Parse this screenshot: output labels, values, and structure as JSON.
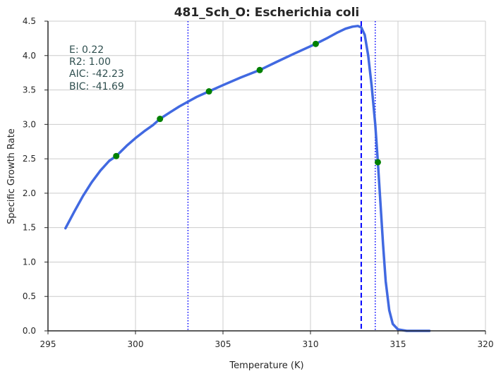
{
  "chart_data": {
    "type": "line",
    "title": "481_Sch_O: Escherichia coli",
    "xlabel": "Temperature (K)",
    "ylabel": "Specific Growth Rate",
    "xlim": [
      295,
      320
    ],
    "ylim": [
      0,
      4.5
    ],
    "xticks": [
      295,
      300,
      305,
      310,
      315,
      320
    ],
    "yticks": [
      0.0,
      0.5,
      1.0,
      1.5,
      2.0,
      2.5,
      3.0,
      3.5,
      4.0,
      4.5
    ],
    "xtick_labels": [
      "295",
      "300",
      "305",
      "310",
      "315",
      "320"
    ],
    "ytick_labels": [
      "0.0",
      "0.5",
      "1.0",
      "1.5",
      "2.0",
      "2.5",
      "3.0",
      "3.5",
      "4.0",
      "4.5"
    ],
    "grid": true,
    "series": [
      {
        "kind": "line",
        "color": "#4169e1",
        "x": [
          296.0,
          296.5,
          297.0,
          297.5,
          298.0,
          298.5,
          298.9,
          299.5,
          300.0,
          300.5,
          301.0,
          301.4,
          302.0,
          302.5,
          303.0,
          303.5,
          304.2,
          305.0,
          306.0,
          307.1,
          308.0,
          309.0,
          310.3,
          311.0,
          311.5,
          312.0,
          312.4,
          312.7,
          312.9,
          313.1,
          313.3,
          313.5,
          313.7,
          313.85,
          314.0,
          314.15,
          314.3,
          314.5,
          314.7,
          315.0,
          315.5,
          316.0,
          316.8
        ],
        "y": [
          1.49,
          1.73,
          1.96,
          2.16,
          2.33,
          2.47,
          2.54,
          2.69,
          2.8,
          2.9,
          2.99,
          3.08,
          3.18,
          3.26,
          3.33,
          3.4,
          3.48,
          3.57,
          3.68,
          3.79,
          3.9,
          4.02,
          4.17,
          4.26,
          4.33,
          4.39,
          4.42,
          4.43,
          4.41,
          4.3,
          4.0,
          3.55,
          3.0,
          2.45,
          1.85,
          1.25,
          0.72,
          0.3,
          0.1,
          0.02,
          0.0,
          0.0,
          0.0
        ]
      },
      {
        "kind": "points",
        "color": "#008000",
        "x": [
          298.9,
          301.4,
          304.2,
          307.1,
          310.3,
          313.85
        ],
        "y": [
          2.54,
          3.08,
          3.48,
          3.79,
          4.17,
          2.45
        ]
      }
    ],
    "vlines": [
      {
        "x": 303.0,
        "style": "dotted",
        "color": "#0000ff"
      },
      {
        "x": 312.9,
        "style": "dashed",
        "color": "#0000ff"
      },
      {
        "x": 313.7,
        "style": "dotted",
        "color": "#0000ff"
      }
    ],
    "annotations": [
      "E:  0.22",
      "R2:  1.00",
      "AIC: -42.23",
      "BIC: -41.69"
    ]
  }
}
